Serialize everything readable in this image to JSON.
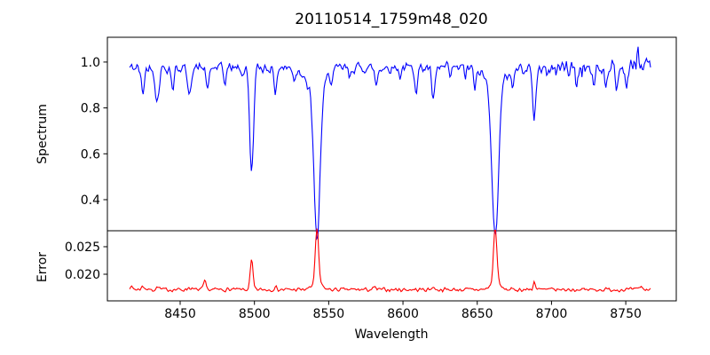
{
  "figure": {
    "title": "20110514_1759m48_020",
    "xlabel": "Wavelength",
    "ylabel_top": "Spectrum",
    "ylabel_bottom": "Error",
    "background_color": "#ffffff",
    "axis_color": "#000000"
  },
  "chart_data": {
    "type": "line",
    "title": "20110514_1759m48_020",
    "xlabel": "Wavelength",
    "xlim": [
      8401,
      8784
    ],
    "xticks": [
      8450,
      8500,
      8550,
      8600,
      8650,
      8700,
      8750
    ],
    "xticklabels": [
      "8450",
      "8500",
      "8550",
      "8600",
      "8650",
      "8700",
      "8750"
    ],
    "grid": false,
    "legend": "none",
    "panels": [
      {
        "ylabel": "Spectrum",
        "ylim": [
          0.2645,
          1.108
        ],
        "yticks": [
          0.4,
          0.6,
          0.8,
          1.0
        ],
        "yticklabels": [
          "0.4",
          "0.6",
          "0.8",
          "1.0"
        ],
        "series": {
          "name": "spectrum",
          "color": "#0000ff",
          "x_start": 8416,
          "x_end": 8767,
          "step": 0.7,
          "continuum": 0.975,
          "noise_amp": 0.028,
          "noise_amp_high": 0.052,
          "noise_boost_from": 8700,
          "noise_seed": 42,
          "absorption_lines": [
            {
              "center": 8424.8,
              "min": 0.87,
              "sigma": 1.1
            },
            {
              "center": 8434.5,
              "min": 0.825,
              "sigma": 1.2
            },
            {
              "center": 8445.0,
              "min": 0.885,
              "sigma": 0.9
            },
            {
              "center": 8456.0,
              "min": 0.85,
              "sigma": 1.1
            },
            {
              "center": 8468.5,
              "min": 0.87,
              "sigma": 0.9
            },
            {
              "center": 8480.0,
              "min": 0.91,
              "sigma": 0.8
            },
            {
              "center": 8492.0,
              "min": 0.94,
              "sigma": 0.7
            },
            {
              "center": 8498.1,
              "min": 0.52,
              "sigma": 1.3
            },
            {
              "center": 8514.0,
              "min": 0.875,
              "sigma": 1.0
            },
            {
              "center": 8527.0,
              "min": 0.925,
              "sigma": 0.8
            },
            {
              "center": 8536.0,
              "min": 0.93,
              "sigma": 0.7
            },
            {
              "center": 8542.1,
              "min": 0.31,
              "sigma": 2.0
            },
            {
              "center": 8542.1,
              "min": 0.885,
              "sigma": 6.0
            },
            {
              "center": 8552.0,
              "min": 0.945,
              "sigma": 0.7
            },
            {
              "center": 8564.0,
              "min": 0.93,
              "sigma": 0.8
            },
            {
              "center": 8582.0,
              "min": 0.9,
              "sigma": 0.9
            },
            {
              "center": 8598.0,
              "min": 0.94,
              "sigma": 0.7
            },
            {
              "center": 8609.0,
              "min": 0.88,
              "sigma": 0.9
            },
            {
              "center": 8620.5,
              "min": 0.83,
              "sigma": 1.1
            },
            {
              "center": 8632.0,
              "min": 0.93,
              "sigma": 0.7
            },
            {
              "center": 8642.0,
              "min": 0.94,
              "sigma": 0.6
            },
            {
              "center": 8648.5,
              "min": 0.88,
              "sigma": 0.8
            },
            {
              "center": 8662.1,
              "min": 0.315,
              "sigma": 2.1
            },
            {
              "center": 8662.1,
              "min": 0.89,
              "sigma": 6.0
            },
            {
              "center": 8674.0,
              "min": 0.905,
              "sigma": 0.8
            },
            {
              "center": 8688.4,
              "min": 0.75,
              "sigma": 1.1
            },
            {
              "center": 8697.0,
              "min": 0.93,
              "sigma": 0.7
            },
            {
              "center": 8717.0,
              "min": 0.9,
              "sigma": 0.8
            },
            {
              "center": 8728.0,
              "min": 0.89,
              "sigma": 0.9
            },
            {
              "center": 8736.5,
              "min": 0.905,
              "sigma": 0.8
            },
            {
              "center": 8744.0,
              "min": 0.885,
              "sigma": 0.9
            },
            {
              "center": 8750.5,
              "min": 0.9,
              "sigma": 0.7
            }
          ],
          "emission_spikes": [
            {
              "center": 8758.0,
              "max": 1.075,
              "sigma": 0.6
            },
            {
              "center": 8765.5,
              "max": 1.03,
              "sigma": 0.5
            }
          ]
        }
      },
      {
        "ylabel": "Error",
        "ylim": [
          0.01516,
          0.0279
        ],
        "yticks": [
          0.02,
          0.025
        ],
        "yticklabels": [
          "0.020",
          "0.025"
        ],
        "series": {
          "name": "error",
          "color": "#ff0000",
          "x_start": 8416,
          "x_end": 8767,
          "step": 0.7,
          "baseline": 0.0172,
          "noise_amp": 0.00042,
          "noise_seed": 7,
          "peaks": [
            {
              "center": 8416.0,
              "max": 0.0177,
              "sigma": 2.0
            },
            {
              "center": 8425.0,
              "max": 0.0178,
              "sigma": 1.2
            },
            {
              "center": 8435.0,
              "max": 0.0177,
              "sigma": 1.0
            },
            {
              "center": 8456.0,
              "max": 0.0176,
              "sigma": 1.0
            },
            {
              "center": 8466.5,
              "max": 0.0187,
              "sigma": 0.8
            },
            {
              "center": 8498.1,
              "max": 0.0226,
              "sigma": 0.9
            },
            {
              "center": 8514.0,
              "max": 0.0177,
              "sigma": 0.8
            },
            {
              "center": 8542.1,
              "max": 0.0268,
              "sigma": 1.1
            },
            {
              "center": 8542.1,
              "max": 0.0185,
              "sigma": 3.0
            },
            {
              "center": 8581.0,
              "max": 0.0176,
              "sigma": 0.8
            },
            {
              "center": 8620.0,
              "max": 0.0177,
              "sigma": 0.9
            },
            {
              "center": 8662.1,
              "max": 0.0272,
              "sigma": 1.1
            },
            {
              "center": 8662.1,
              "max": 0.0185,
              "sigma": 3.0
            },
            {
              "center": 8688.4,
              "max": 0.0188,
              "sigma": 0.7
            },
            {
              "center": 8760.0,
              "max": 0.0178,
              "sigma": 1.0
            }
          ]
        }
      }
    ]
  }
}
